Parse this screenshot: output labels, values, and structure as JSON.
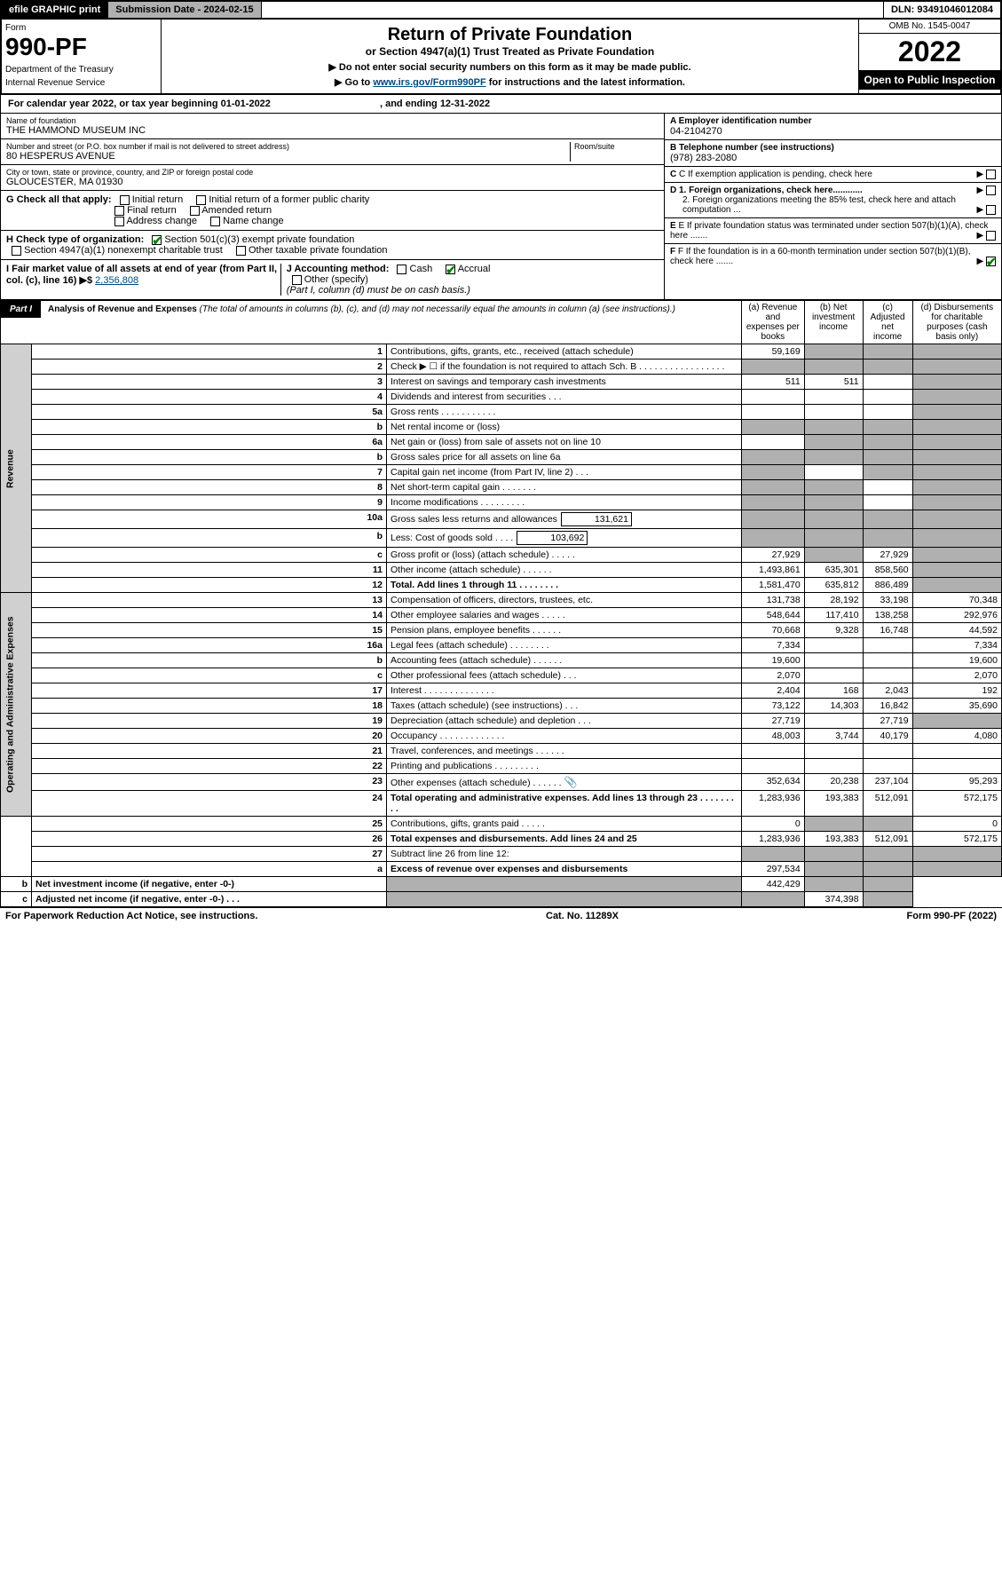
{
  "topbar": {
    "efile": "efile GRAPHIC print",
    "submission": "Submission Date - 2024-02-15",
    "dln": "DLN: 93491046012084"
  },
  "header": {
    "form_label": "Form",
    "form_number": "990-PF",
    "dept1": "Department of the Treasury",
    "dept2": "Internal Revenue Service",
    "title": "Return of Private Foundation",
    "subtitle": "or Section 4947(a)(1) Trust Treated as Private Foundation",
    "inst1": "▶ Do not enter social security numbers on this form as it may be made public.",
    "inst2_pre": "▶ Go to ",
    "inst2_link": "www.irs.gov/Form990PF",
    "inst2_post": " for instructions and the latest information.",
    "omb": "OMB No. 1545-0047",
    "year": "2022",
    "open": "Open to Public Inspection"
  },
  "calyear": {
    "text_pre": "For calendar year 2022, or tax year beginning 01-01-2022",
    "text_mid": ", and ending 12-31-2022"
  },
  "entity": {
    "name_label": "Name of foundation",
    "name": "THE HAMMOND MUSEUM INC",
    "addr_label": "Number and street (or P.O. box number if mail is not delivered to street address)",
    "addr": "80 HESPERUS AVENUE",
    "room_label": "Room/suite",
    "city_label": "City or town, state or province, country, and ZIP or foreign postal code",
    "city": "GLOUCESTER, MA  01930",
    "ein_label": "A Employer identification number",
    "ein": "04-2104270",
    "tel_label": "B Telephone number (see instructions)",
    "tel": "(978) 283-2080",
    "c_label": "C If exemption application is pending, check here",
    "d1": "D 1. Foreign organizations, check here............",
    "d2": "2. Foreign organizations meeting the 85% test, check here and attach computation ...",
    "e": "E If private foundation status was terminated under section 507(b)(1)(A), check here .......",
    "f": "F If the foundation is in a 60-month termination under section 507(b)(1)(B), check here .......",
    "g_label": "G Check all that apply:",
    "g_opts": [
      "Initial return",
      "Initial return of a former public charity",
      "Final return",
      "Amended return",
      "Address change",
      "Name change"
    ],
    "h_label": "H Check type of organization:",
    "h_opts": [
      "Section 501(c)(3) exempt private foundation",
      "Section 4947(a)(1) nonexempt charitable trust",
      "Other taxable private foundation"
    ],
    "i_label": "I Fair market value of all assets at end of year (from Part II, col. (c), line 16) ▶$ ",
    "i_val": "2,356,808",
    "j_label": "J Accounting method:",
    "j_cash": "Cash",
    "j_accrual": "Accrual",
    "j_other": "Other (specify)",
    "j_note": "(Part I, column (d) must be on cash basis.)"
  },
  "part1": {
    "label": "Part I",
    "title": "Analysis of Revenue and Expenses",
    "title_note": " (The total of amounts in columns (b), (c), and (d) may not necessarily equal the amounts in column (a) (see instructions).)",
    "col_a": "(a) Revenue and expenses per books",
    "col_b": "(b) Net investment income",
    "col_c": "(c) Adjusted net income",
    "col_d": "(d) Disbursements for charitable purposes (cash basis only)"
  },
  "sections": {
    "revenue": "Revenue",
    "opex": "Operating and Administrative Expenses"
  },
  "rows": [
    {
      "n": "1",
      "d": "Contributions, gifts, grants, etc., received (attach schedule)",
      "a": "59,169",
      "b": "",
      "c": "",
      "dd": "",
      "bsh": true,
      "csh": true,
      "dsh": true
    },
    {
      "n": "2",
      "d": "Check ▶ ☐ if the foundation is not required to attach Sch. B   .  .  .  .  .  .  .  .  .  .  .  .  .  .  .  .  .",
      "a": "",
      "b": "",
      "c": "",
      "dd": "",
      "ash": true,
      "bsh": true,
      "csh": true,
      "dsh": true
    },
    {
      "n": "3",
      "d": "Interest on savings and temporary cash investments",
      "a": "511",
      "b": "511",
      "c": "",
      "dd": "",
      "dsh": true
    },
    {
      "n": "4",
      "d": "Dividends and interest from securities   .  .  .",
      "a": "",
      "b": "",
      "c": "",
      "dd": "",
      "dsh": true
    },
    {
      "n": "5a",
      "d": "Gross rents   .  .  .  .  .  .  .  .  .  .  .",
      "a": "",
      "b": "",
      "c": "",
      "dd": "",
      "dsh": true
    },
    {
      "n": "b",
      "d": "Net rental income or (loss)",
      "a": "",
      "b": "",
      "c": "",
      "dd": "",
      "ash": true,
      "bsh": true,
      "csh": true,
      "dsh": true
    },
    {
      "n": "6a",
      "d": "Net gain or (loss) from sale of assets not on line 10",
      "a": "",
      "b": "",
      "c": "",
      "dd": "",
      "bsh": true,
      "csh": true,
      "dsh": true
    },
    {
      "n": "b",
      "d": "Gross sales price for all assets on line 6a",
      "a": "",
      "b": "",
      "c": "",
      "dd": "",
      "ash": true,
      "bsh": true,
      "csh": true,
      "dsh": true
    },
    {
      "n": "7",
      "d": "Capital gain net income (from Part IV, line 2)   .  .  .",
      "a": "",
      "b": "",
      "c": "",
      "dd": "",
      "ash": true,
      "csh": true,
      "dsh": true
    },
    {
      "n": "8",
      "d": "Net short-term capital gain   .  .  .  .  .  .  .",
      "a": "",
      "b": "",
      "c": "",
      "dd": "",
      "ash": true,
      "bsh": true,
      "dsh": true
    },
    {
      "n": "9",
      "d": "Income modifications   .  .  .  .  .  .  .  .  .",
      "a": "",
      "b": "",
      "c": "",
      "dd": "",
      "ash": true,
      "bsh": true,
      "dsh": true
    },
    {
      "n": "10a",
      "d": "Gross sales less returns and allowances",
      "sub": "131,621",
      "a": "",
      "b": "",
      "c": "",
      "dd": "",
      "ash": true,
      "bsh": true,
      "csh": true,
      "dsh": true
    },
    {
      "n": "b",
      "d": "Less: Cost of goods sold   .  .  .  .",
      "sub": "103,692",
      "a": "",
      "b": "",
      "c": "",
      "dd": "",
      "ash": true,
      "bsh": true,
      "csh": true,
      "dsh": true
    },
    {
      "n": "c",
      "d": "Gross profit or (loss) (attach schedule)   .  .  .  .  .",
      "a": "27,929",
      "b": "",
      "c": "27,929",
      "dd": "",
      "bsh": true,
      "dsh": true
    },
    {
      "n": "11",
      "d": "Other income (attach schedule)   .  .  .  .  .  .",
      "a": "1,493,861",
      "b": "635,301",
      "c": "858,560",
      "dd": "",
      "dsh": true
    },
    {
      "n": "12",
      "d": "Total. Add lines 1 through 11   .  .  .  .  .  .  .  .",
      "bold": true,
      "a": "1,581,470",
      "b": "635,812",
      "c": "886,489",
      "dd": "",
      "dsh": true
    },
    {
      "n": "13",
      "d": "Compensation of officers, directors, trustees, etc.",
      "a": "131,738",
      "b": "28,192",
      "c": "33,198",
      "dd": "70,348"
    },
    {
      "n": "14",
      "d": "Other employee salaries and wages   .  .  .  .  .",
      "a": "548,644",
      "b": "117,410",
      "c": "138,258",
      "dd": "292,976"
    },
    {
      "n": "15",
      "d": "Pension plans, employee benefits   .  .  .  .  .  .",
      "a": "70,668",
      "b": "9,328",
      "c": "16,748",
      "dd": "44,592"
    },
    {
      "n": "16a",
      "d": "Legal fees (attach schedule)  .  .  .  .  .  .  .  .",
      "a": "7,334",
      "b": "",
      "c": "",
      "dd": "7,334"
    },
    {
      "n": "b",
      "d": "Accounting fees (attach schedule)   .  .  .  .  .  .",
      "a": "19,600",
      "b": "",
      "c": "",
      "dd": "19,600"
    },
    {
      "n": "c",
      "d": "Other professional fees (attach schedule)   .  .  .",
      "a": "2,070",
      "b": "",
      "c": "",
      "dd": "2,070"
    },
    {
      "n": "17",
      "d": "Interest  .  .  .  .  .  .  .  .  .  .  .  .  .  .",
      "a": "2,404",
      "b": "168",
      "c": "2,043",
      "dd": "192"
    },
    {
      "n": "18",
      "d": "Taxes (attach schedule) (see instructions)   .  .  .",
      "a": "73,122",
      "b": "14,303",
      "c": "16,842",
      "dd": "35,690"
    },
    {
      "n": "19",
      "d": "Depreciation (attach schedule) and depletion   .  .  .",
      "a": "27,719",
      "b": "",
      "c": "27,719",
      "dd": "",
      "dsh": true
    },
    {
      "n": "20",
      "d": "Occupancy  .  .  .  .  .  .  .  .  .  .  .  .  .",
      "a": "48,003",
      "b": "3,744",
      "c": "40,179",
      "dd": "4,080"
    },
    {
      "n": "21",
      "d": "Travel, conferences, and meetings  .  .  .  .  .  .",
      "a": "",
      "b": "",
      "c": "",
      "dd": ""
    },
    {
      "n": "22",
      "d": "Printing and publications  .  .  .  .  .  .  .  .  .",
      "a": "",
      "b": "",
      "c": "",
      "dd": ""
    },
    {
      "n": "23",
      "d": "Other expenses (attach schedule)   .  .  .  .  .  .",
      "icon": true,
      "a": "352,634",
      "b": "20,238",
      "c": "237,104",
      "dd": "95,293"
    },
    {
      "n": "24",
      "d": "Total operating and administrative expenses. Add lines 13 through 23   .  .  .  .  .  .  .  .  .",
      "bold": true,
      "a": "1,283,936",
      "b": "193,383",
      "c": "512,091",
      "dd": "572,175"
    },
    {
      "n": "25",
      "d": "Contributions, gifts, grants paid   .  .  .  .  .",
      "a": "0",
      "b": "",
      "c": "",
      "dd": "0",
      "bsh": true,
      "csh": true
    },
    {
      "n": "26",
      "d": "Total expenses and disbursements. Add lines 24 and 25",
      "bold": true,
      "a": "1,283,936",
      "b": "193,383",
      "c": "512,091",
      "dd": "572,175"
    },
    {
      "n": "27",
      "d": "Subtract line 26 from line 12:",
      "a": "",
      "b": "",
      "c": "",
      "dd": "",
      "ash": true,
      "bsh": true,
      "csh": true,
      "dsh": true
    },
    {
      "n": "a",
      "d": "Excess of revenue over expenses and disbursements",
      "bold": true,
      "a": "297,534",
      "b": "",
      "c": "",
      "dd": "",
      "bsh": true,
      "csh": true,
      "dsh": true
    },
    {
      "n": "b",
      "d": "Net investment income (if negative, enter -0-)",
      "bold": true,
      "a": "",
      "b": "442,429",
      "c": "",
      "dd": "",
      "ash": true,
      "csh": true,
      "dsh": true
    },
    {
      "n": "c",
      "d": "Adjusted net income (if negative, enter -0-)   .  .  .",
      "bold": true,
      "a": "",
      "b": "",
      "c": "374,398",
      "dd": "",
      "ash": true,
      "bsh": true,
      "dsh": true
    }
  ],
  "footer": {
    "left": "For Paperwork Reduction Act Notice, see instructions.",
    "mid": "Cat. No. 11289X",
    "right": "Form 990-PF (2022)"
  }
}
